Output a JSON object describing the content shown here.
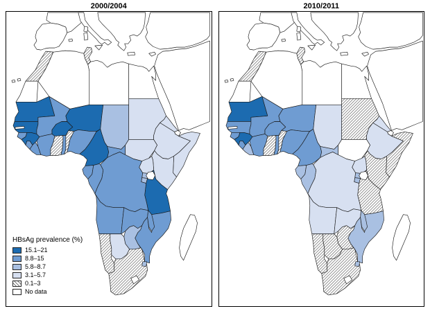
{
  "figure": {
    "panels": [
      {
        "title": "2000/2004"
      },
      {
        "title": "2010/2011"
      }
    ],
    "legend": {
      "title": "HBsAg prevalence (%)",
      "items": [
        {
          "label": "15.1–21",
          "cat": 5
        },
        {
          "label": "8.8–15",
          "cat": 4
        },
        {
          "label": "5.8–8.7",
          "cat": 3
        },
        {
          "label": "3.1–5.7",
          "cat": 2
        },
        {
          "label": "0.1–3",
          "cat": 1
        },
        {
          "label": "No data",
          "cat": 0
        }
      ]
    },
    "colors": [
      "#ffffff",
      "hatch",
      "#d7e0f1",
      "#a9c0e2",
      "#6f9cd2",
      "#1c6bb0"
    ],
    "map_data": {
      "type": "choropleth",
      "unit": "HBsAg prevalence (%)",
      "categories": [
        "No data",
        "0.1–3",
        "3.1–5.7",
        "5.8–8.7",
        "8.8–15",
        "15.1–21"
      ],
      "years": [
        "2000/2004",
        "2010/2011"
      ],
      "countries": {
        "morocco": [
          1,
          1
        ],
        "wsahara": [
          0,
          0
        ],
        "algeria": [
          0,
          0
        ],
        "tunisia": [
          1,
          1
        ],
        "libya": [
          0,
          0
        ],
        "egypt": [
          0,
          0
        ],
        "mauritania": [
          5,
          5
        ],
        "senegal": [
          5,
          4
        ],
        "gambia": [
          0,
          0
        ],
        "guineabissau": [
          4,
          4
        ],
        "guinea": [
          5,
          5
        ],
        "sierraleone": [
          4,
          4
        ],
        "liberia": [
          4,
          3
        ],
        "cotedivoire": [
          4,
          4
        ],
        "ghana": [
          1,
          1
        ],
        "togo": [
          4,
          4
        ],
        "benin": [
          1,
          1
        ],
        "burkinafaso": [
          5,
          4
        ],
        "mali": [
          4,
          4
        ],
        "niger": [
          5,
          4
        ],
        "nigeria": [
          4,
          4
        ],
        "chad": [
          3,
          2
        ],
        "cameroon": [
          5,
          4
        ],
        "centralafricanrep": [
          4,
          3
        ],
        "sudan": [
          2,
          1
        ],
        "southsudan": [
          2,
          0
        ],
        "eritrea": [
          2,
          2
        ],
        "djibouti": [
          0,
          0
        ],
        "ethiopia": [
          2,
          2
        ],
        "somalia": [
          2,
          1
        ],
        "kenya": [
          2,
          1
        ],
        "uganda": [
          2,
          2
        ],
        "rwanda": [
          3,
          3
        ],
        "burundi": [
          3,
          3
        ],
        "tanzania": [
          5,
          1
        ],
        "drcongo": [
          4,
          2
        ],
        "gabon": [
          4,
          3
        ],
        "congo": [
          4,
          3
        ],
        "angola": [
          4,
          2
        ],
        "zambia": [
          4,
          2
        ],
        "malawi": [
          4,
          3
        ],
        "mozambique": [
          4,
          3
        ],
        "zimbabwe": [
          3,
          1
        ],
        "botswana": [
          2,
          1
        ],
        "namibia": [
          1,
          1
        ],
        "southafrica": [
          1,
          1
        ],
        "lesotho": [
          0,
          0
        ],
        "swaziland": [
          3,
          3
        ],
        "madagascar": [
          0,
          0
        ]
      }
    }
  }
}
